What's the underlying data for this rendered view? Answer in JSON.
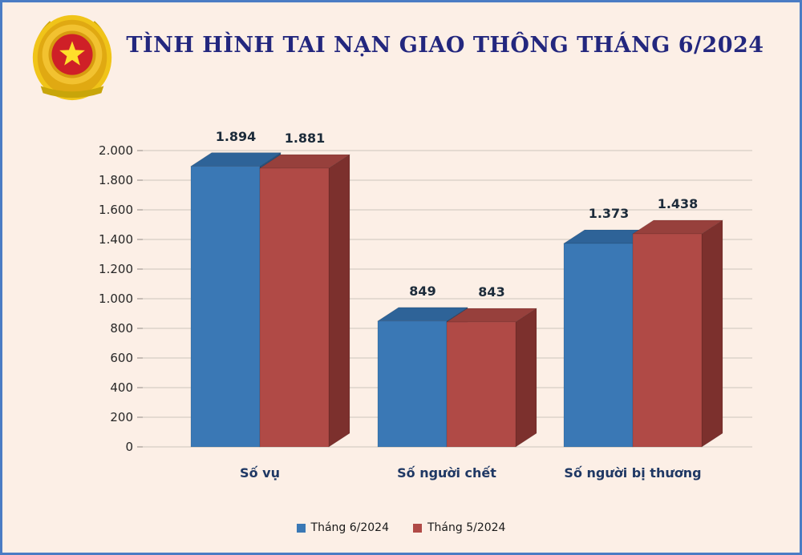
{
  "theme": {
    "background": "#fcefe6",
    "border_color": "#4a7cc4",
    "title_color": "#23277e"
  },
  "logo": {
    "icon": "vietnam-public-security-emblem",
    "star_color": "#ffdf2b",
    "center_color": "#cf2027",
    "wreath_color": "#f0c419"
  },
  "chart_data": {
    "type": "bar",
    "style": "3d-clustered-column",
    "title": "TÌNH HÌNH TAI NẠN GIAO THÔNG THÁNG 6/2024",
    "categories": [
      "Số vụ",
      "Số người chết",
      "Số người bị thương"
    ],
    "series": [
      {
        "name": "Tháng 6/2024",
        "values": [
          1894,
          849,
          1373
        ],
        "labels": [
          "1.894",
          "849",
          "1.373"
        ],
        "color": "#3a78b5",
        "color_top": "#2e6398",
        "color_side": "#26527f"
      },
      {
        "name": "Tháng 5/2024",
        "values": [
          1881,
          843,
          1438
        ],
        "labels": [
          "1.881",
          "843",
          "1.438"
        ],
        "color": "#b04a46",
        "color_top": "#97403c",
        "color_side": "#7c302d"
      }
    ],
    "xlabel": "",
    "ylabel": "",
    "ylim": [
      0,
      2000
    ],
    "ytick_step": 200,
    "ytick_labels": [
      "0",
      "200",
      "400",
      "600",
      "800",
      "1.000",
      "1.200",
      "1.400",
      "1.600",
      "1.800",
      "2.000"
    ],
    "grid": true,
    "legend_position": "bottom"
  }
}
